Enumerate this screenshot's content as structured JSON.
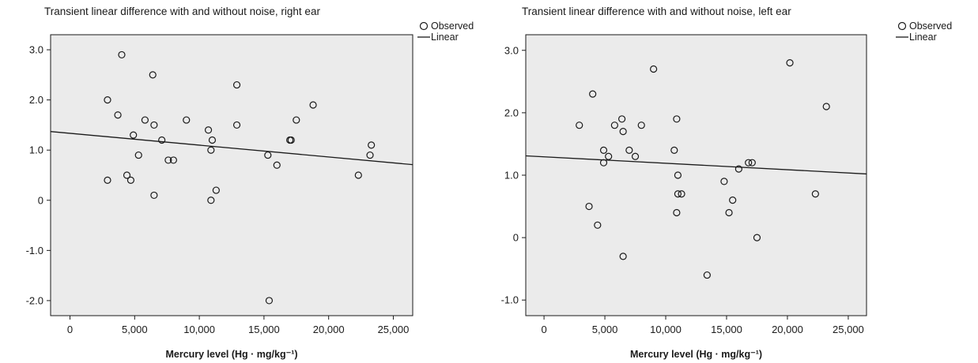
{
  "chart_data": [
    {
      "type": "scatter",
      "title": "Transient linear difference with and without noise, right ear",
      "xlabel": "Mercury level (Hg · mg/kg⁻¹)",
      "ylabel": "",
      "xlim": [
        -1500,
        26500
      ],
      "ylim": [
        -2.3,
        3.3
      ],
      "xticks": [
        0,
        5000,
        10000,
        15000,
        20000,
        25000
      ],
      "xtick_labels": [
        "0",
        "5,000",
        "10,000",
        "15,000",
        "20,000",
        "25,000"
      ],
      "yticks": [
        3.0,
        2.0,
        1.0,
        0,
        -1.0,
        -2.0
      ],
      "ytick_labels": [
        "3.0",
        "2.0",
        "1.0",
        "0",
        "-1.0",
        "-2.0"
      ],
      "legend": [
        "Observed",
        "Linear"
      ],
      "legend_position": "top-right-outside",
      "grid": false,
      "background": "#ebebeb",
      "observed": {
        "x": [
          2900,
          2900,
          3700,
          4000,
          4400,
          4700,
          4900,
          5300,
          5800,
          6400,
          6500,
          6500,
          7100,
          7600,
          8000,
          9000,
          10700,
          10900,
          10900,
          11000,
          11300,
          12900,
          12900,
          15300,
          15400,
          16000,
          17000,
          17100,
          17500,
          18800,
          22300,
          23200,
          23300
        ],
        "y": [
          2.0,
          0.4,
          1.7,
          2.9,
          0.5,
          0.4,
          1.3,
          0.9,
          1.6,
          2.5,
          1.5,
          0.1,
          1.2,
          0.8,
          0.8,
          1.6,
          1.4,
          1.0,
          0.0,
          1.2,
          0.2,
          2.3,
          1.5,
          0.9,
          -2.0,
          0.7,
          1.2,
          1.2,
          1.6,
          1.9,
          0.5,
          0.9,
          1.1
        ]
      },
      "linear": {
        "x": [
          -1500,
          26500
        ],
        "y": [
          1.37,
          0.71
        ]
      }
    },
    {
      "type": "scatter",
      "title": "Transient linear difference with and without noise, left ear",
      "xlabel": "Mercury level (Hg · mg/kg⁻¹)",
      "ylabel": "",
      "xlim": [
        -1500,
        26500
      ],
      "ylim": [
        -1.25,
        3.25
      ],
      "xticks": [
        0,
        5000,
        10000,
        15000,
        20000,
        25000
      ],
      "xtick_labels": [
        "0",
        "5,000",
        "10,000",
        "15,000",
        "20,000",
        "25,000"
      ],
      "yticks": [
        3.0,
        2.0,
        1.0,
        0,
        -1.0
      ],
      "ytick_labels": [
        "3.0",
        "2.0",
        "1.0",
        "0",
        "-1.0"
      ],
      "legend": [
        "Observed",
        "Linear"
      ],
      "legend_position": "top-right-outside",
      "grid": false,
      "background": "#ebebeb",
      "observed": {
        "x": [
          2900,
          3700,
          4000,
          4400,
          4900,
          4900,
          5300,
          5800,
          6400,
          6500,
          6500,
          7000,
          7500,
          8000,
          9000,
          10700,
          10900,
          10900,
          11000,
          11000,
          11300,
          13400,
          14800,
          15200,
          15500,
          16000,
          16800,
          17100,
          17500,
          20200,
          22300,
          23200
        ],
        "y": [
          1.8,
          0.5,
          2.3,
          0.2,
          1.4,
          1.2,
          1.3,
          1.8,
          1.9,
          1.7,
          -0.3,
          1.4,
          1.3,
          1.8,
          2.7,
          1.4,
          1.9,
          0.4,
          1.0,
          0.7,
          0.7,
          -0.6,
          0.9,
          0.4,
          0.6,
          1.1,
          1.2,
          1.2,
          0.0,
          2.8,
          0.7,
          2.1
        ]
      },
      "linear": {
        "x": [
          -1500,
          26500
        ],
        "y": [
          1.31,
          1.02
        ]
      }
    }
  ]
}
